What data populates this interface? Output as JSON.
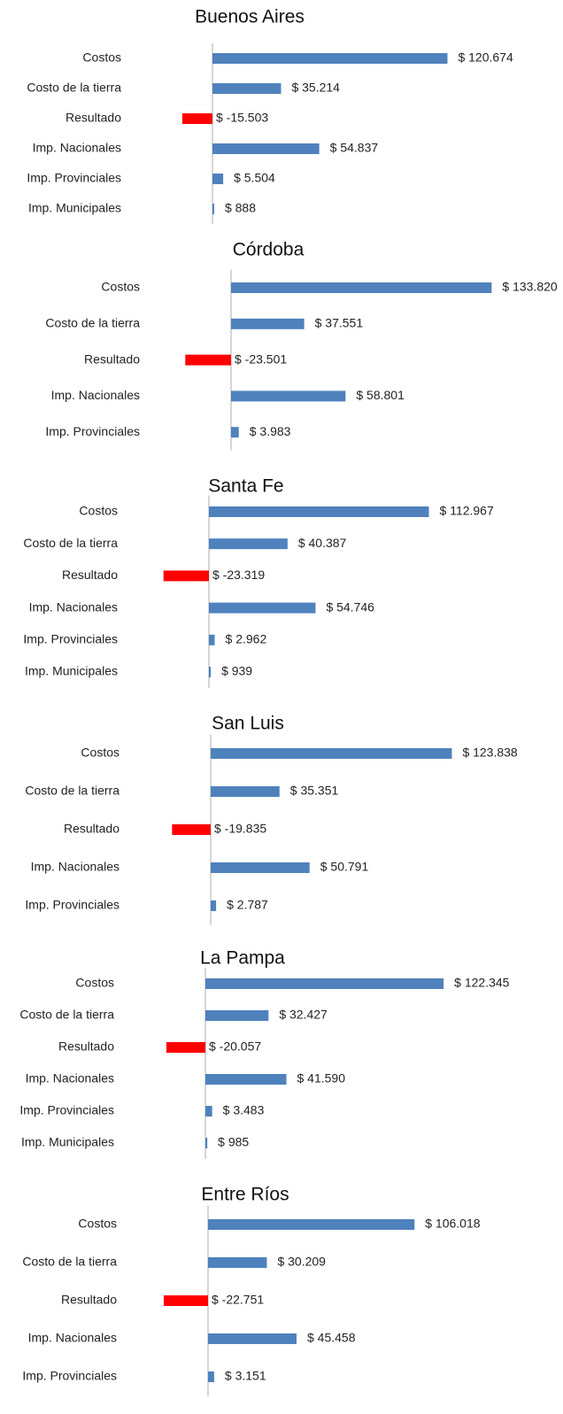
{
  "chart_data": [
    {
      "type": "bar",
      "orientation": "horizontal",
      "title": "Buenos Aires",
      "categories": [
        "Costos",
        "Costo de la tierra",
        "Resultado",
        "Imp. Nacionales",
        "Imp. Provinciales",
        "Imp. Municipales"
      ],
      "values": [
        120674,
        35214,
        -15503,
        54837,
        5504,
        888
      ],
      "value_labels": [
        "$ 120.674",
        "$ 35.214",
        "$ -15.503",
        "$ 54.837",
        "$ 5.504",
        "$ 888"
      ],
      "color": "#4f81bd",
      "negative_color": "#ff0000",
      "xlim": [
        -30000,
        150000
      ]
    },
    {
      "type": "bar",
      "orientation": "horizontal",
      "title": "Córdoba",
      "categories": [
        "Costos",
        "Costo de la tierra",
        "Resultado",
        "Imp. Nacionales",
        "Imp. Provinciales"
      ],
      "values": [
        133820,
        37551,
        -23501,
        58801,
        3983
      ],
      "value_labels": [
        "$ 133.820",
        "$ 37.551",
        "$ -23.501",
        "$ 58.801",
        "$ 3.983"
      ],
      "color": "#4f81bd",
      "negative_color": "#ff0000",
      "xlim": [
        -30000,
        150000
      ]
    },
    {
      "type": "bar",
      "orientation": "horizontal",
      "title": "Santa Fe",
      "categories": [
        "Costos",
        "Costo de la tierra",
        "Resultado",
        "Imp. Nacionales",
        "Imp. Provinciales",
        "Imp. Municipales"
      ],
      "values": [
        112967,
        40387,
        -23319,
        54746,
        2962,
        939
      ],
      "value_labels": [
        "$ 112.967",
        "$ 40.387",
        "$ -23.319",
        "$ 54.746",
        "$ 2.962",
        "$ 939"
      ],
      "color": "#4f81bd",
      "negative_color": "#ff0000",
      "xlim": [
        -30000,
        150000
      ]
    },
    {
      "type": "bar",
      "orientation": "horizontal",
      "title": "San Luis",
      "categories": [
        "Costos",
        "Costo de la tierra",
        "Resultado",
        "Imp. Nacionales",
        "Imp. Provinciales"
      ],
      "values": [
        123838,
        35351,
        -19835,
        50791,
        2787
      ],
      "value_labels": [
        "$ 123.838",
        "$ 35.351",
        "$ -19.835",
        "$ 50.791",
        "$ 2.787"
      ],
      "color": "#4f81bd",
      "negative_color": "#ff0000",
      "xlim": [
        -30000,
        150000
      ]
    },
    {
      "type": "bar",
      "orientation": "horizontal",
      "title": "La Pampa",
      "categories": [
        "Costos",
        "Costo de la tierra",
        "Resultado",
        "Imp. Nacionales",
        "Imp. Provinciales",
        "Imp. Municipales"
      ],
      "values": [
        122345,
        32427,
        -20057,
        41590,
        3483,
        985
      ],
      "value_labels": [
        "$ 122.345",
        "$ 32.427",
        "$ -20.057",
        "$ 41.590",
        "$ 3.483",
        "$ 985"
      ],
      "color": "#4f81bd",
      "negative_color": "#ff0000",
      "xlim": [
        -30000,
        150000
      ]
    },
    {
      "type": "bar",
      "orientation": "horizontal",
      "title": "Entre Ríos",
      "categories": [
        "Costos",
        "Costo de la tierra",
        "Resultado",
        "Imp. Nacionales",
        "Imp. Provinciales"
      ],
      "values": [
        106018,
        30209,
        -22751,
        45458,
        3151
      ],
      "value_labels": [
        "$ 106.018",
        "$ 30.209",
        "$ -22.751",
        "$ 45.458",
        "$ 3.151"
      ],
      "color": "#4f81bd",
      "negative_color": "#ff0000",
      "xlim": [
        -30000,
        150000
      ]
    }
  ]
}
